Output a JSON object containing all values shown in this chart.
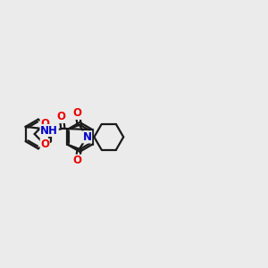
{
  "bg_color": "#ebebeb",
  "bond_color": "#1a1a1a",
  "oxygen_color": "#ee0000",
  "nitrogen_color": "#0000cc",
  "line_width": 1.6,
  "figsize": [
    3.0,
    3.0
  ],
  "dpi": 100,
  "xlim": [
    0,
    14
  ],
  "ylim": [
    2,
    9
  ]
}
